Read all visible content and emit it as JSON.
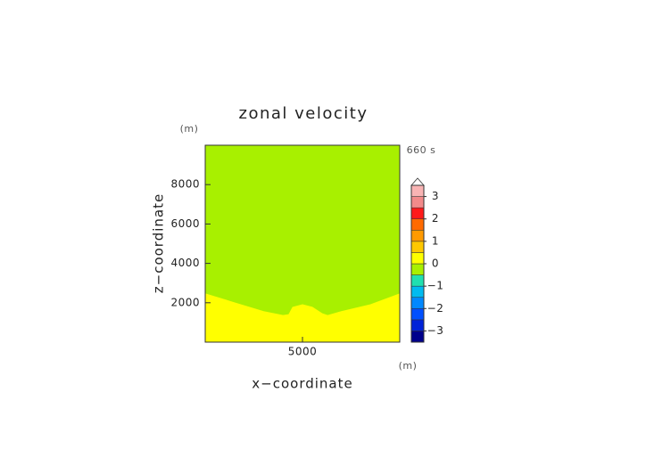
{
  "chart_data": {
    "type": "contour",
    "title": "zonal velocity",
    "x_label": "x−coordinate",
    "y_label": "z−coordinate",
    "x_unit": "(m)",
    "y_unit": "(m)",
    "time_label": "660 s",
    "xlim": [
      0,
      10000
    ],
    "ylim": [
      0,
      10000
    ],
    "xticks": [
      5000
    ],
    "yticks": [
      2000,
      4000,
      6000,
      8000
    ],
    "upper_color": "#a8f000",
    "lower_color": "#ffff00",
    "field": {
      "x": [
        0,
        1500,
        3000,
        4000,
        4300,
        4500,
        5000,
        5500,
        6000,
        6300,
        7000,
        8500,
        10000
      ],
      "z": [
        2450,
        2000,
        1550,
        1350,
        1400,
        1770,
        1900,
        1770,
        1450,
        1350,
        1550,
        1900,
        2450
      ]
    },
    "colorbar": {
      "levels": [
        -3.5,
        -3,
        -2.5,
        -2,
        -1.5,
        -1,
        -0.5,
        0,
        0.5,
        1,
        1.5,
        2,
        2.5,
        3,
        3.5
      ],
      "colors": [
        "#00008c",
        "#0022d8",
        "#0050ff",
        "#0088ff",
        "#00bbf0",
        "#20e0b0",
        "#a8f000",
        "#ffff00",
        "#ffc800",
        "#ff9a00",
        "#ff6a00",
        "#ff1a1a",
        "#f28a8a",
        "#f9b4b4"
      ],
      "extend_color": "#ffffff",
      "ticks": [
        {
          "value": -3,
          "label": "−3"
        },
        {
          "value": -2,
          "label": "−2"
        },
        {
          "value": -1,
          "label": "−1"
        },
        0,
        1,
        2,
        3
      ]
    }
  }
}
